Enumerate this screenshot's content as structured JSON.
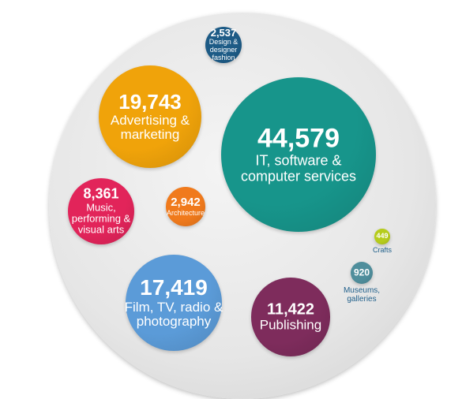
{
  "chart_data": {
    "type": "bubble",
    "categories": [
      "IT, software & computer services",
      "Advertising & marketing",
      "Film, TV, radio & photography",
      "Publishing",
      "Music, performing & visual arts",
      "Architecture",
      "Design & designer fashion",
      "Museums, galleries",
      "Crafts"
    ],
    "values": [
      44579,
      19743,
      17419,
      11422,
      8361,
      2942,
      2537,
      920,
      449
    ],
    "value_labels": [
      "44,579",
      "19,743",
      "17,419",
      "11,422",
      "8,361",
      "2,942",
      "2,537",
      "920",
      "449"
    ],
    "colors": [
      "#17958b",
      "#f0a30a",
      "#5b9bd8",
      "#7e2c5c",
      "#e2245a",
      "#f07a1c",
      "#1d5b86",
      "#4f8e9c",
      "#b6cc1c"
    ]
  }
}
